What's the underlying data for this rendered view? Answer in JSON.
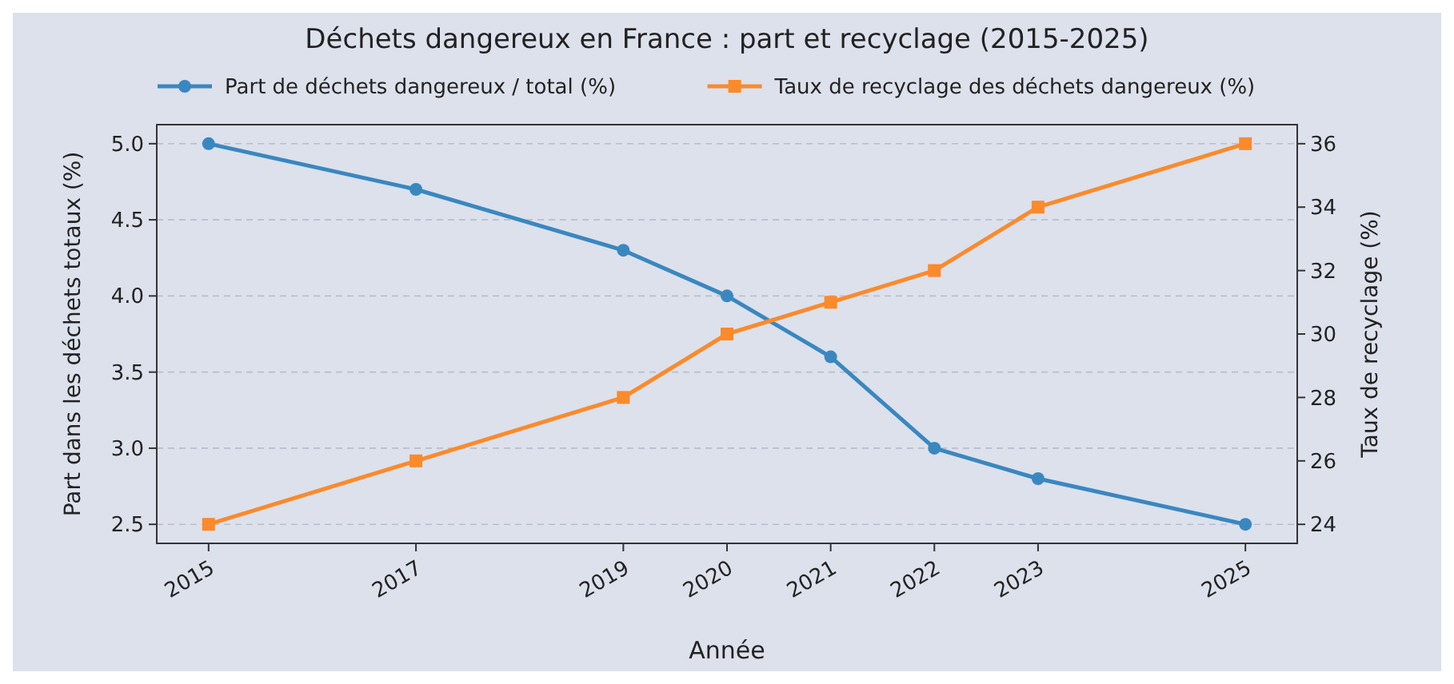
{
  "chart_data": {
    "type": "line",
    "title": "Déchets dangereux en France : part et recyclage (2015-2025)",
    "xlabel": "Année",
    "ylabel": "Part dans les déchets totaux (%)",
    "y2label": "Taux de recyclage (%)",
    "x": [
      2015,
      2017,
      2019,
      2020,
      2021,
      2022,
      2023,
      2025
    ],
    "series": [
      {
        "name": "Part de déchets dangereux / total (%)",
        "color": "#3a87c0",
        "marker": "circle",
        "values": [
          5.0,
          4.7,
          4.3,
          4.0,
          3.6,
          3.0,
          2.8,
          2.5
        ]
      },
      {
        "name": "Taux de recyclage des déchets dangereux (%)",
        "color": "#fb8a2b",
        "marker": "square",
        "axis": "y2",
        "values": [
          24,
          26,
          28,
          30,
          31,
          32,
          34,
          36
        ]
      }
    ],
    "xlim": [
      2014.5,
      2025.5
    ],
    "xticks": [
      2015,
      2017,
      2019,
      2020,
      2021,
      2022,
      2023,
      2025
    ],
    "ylim": [
      2.375,
      5.125
    ],
    "yticks": [
      {
        "value": 2.5,
        "label": "2.5"
      },
      {
        "value": 3.0,
        "label": "3.0"
      },
      {
        "value": 3.5,
        "label": "3.5"
      },
      {
        "value": 4.0,
        "label": "4.0"
      },
      {
        "value": 4.5,
        "label": "4.5"
      },
      {
        "value": 5.0,
        "label": "5.0"
      }
    ],
    "y2lim": [
      23.4,
      36.6
    ],
    "y2ticks": [
      24,
      26,
      28,
      30,
      32,
      34,
      36
    ],
    "grid": "y",
    "legend": "top",
    "line_style": "solid"
  }
}
